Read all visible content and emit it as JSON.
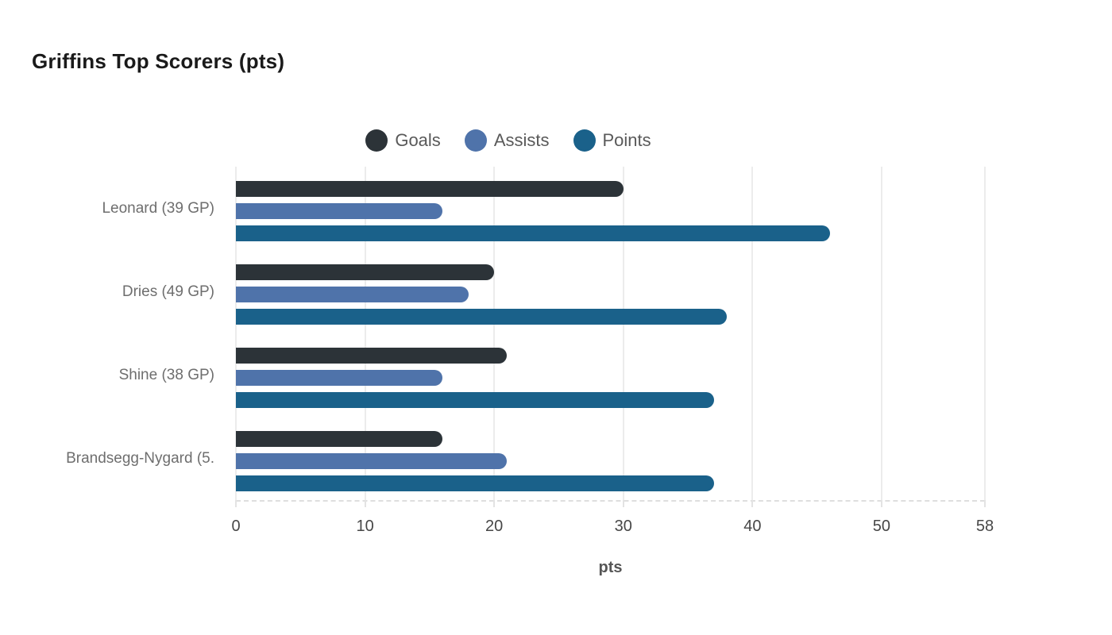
{
  "chart_data": {
    "type": "bar",
    "orientation": "horizontal",
    "title": "Griffins Top Scorers (pts)",
    "xlabel": "pts",
    "ylabel": "",
    "xlim": [
      0,
      58
    ],
    "xticks": [
      0,
      10,
      20,
      30,
      40,
      50,
      58
    ],
    "grid": "vertical-gridlines-on",
    "legend_position": "top-center",
    "categories": [
      "Leonard (39 GP)",
      "Dries (49 GP)",
      "Shine (38 GP)",
      "Brandsegg-Nygard (5."
    ],
    "series": [
      {
        "name": "Goals",
        "color": "#2c3338",
        "values": [
          30,
          20,
          21,
          16
        ]
      },
      {
        "name": "Assists",
        "color": "#4f73aa",
        "values": [
          16,
          18,
          16,
          21
        ]
      },
      {
        "name": "Points",
        "color": "#1a618a",
        "values": [
          46,
          38,
          37,
          37
        ]
      }
    ]
  },
  "colors": {
    "background": "#ffffff",
    "gridline": "#ececec",
    "baseline": "#dedede",
    "tick_text": "#474747",
    "category_text": "#6e6e6e",
    "legend_text": "#595959",
    "title_text": "#1a1a1a",
    "xlabel_text": "#565656"
  }
}
